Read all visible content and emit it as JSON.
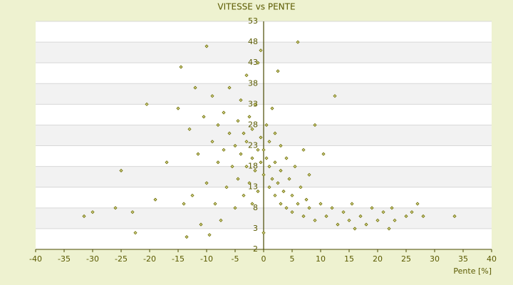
{
  "chart_data": {
    "type": "scatter",
    "title": "VITESSE vs PENTE",
    "x_label": "Pente [%]",
    "xlim": [
      -40,
      40
    ],
    "xticks": [
      -40,
      -35,
      -30,
      -25,
      -20,
      -15,
      -10,
      -5,
      0,
      5,
      10,
      15,
      20,
      25,
      30,
      35,
      40
    ],
    "ylim": [
      -2,
      53
    ],
    "yticks": [
      -2,
      3,
      8,
      13,
      18,
      23,
      28,
      33,
      38,
      43,
      48,
      53
    ],
    "grid": true,
    "color": "#6b6b00",
    "x": [
      -31.5,
      -30,
      -26,
      -25,
      -23,
      -22.5,
      -20.5,
      -19,
      -17,
      -15,
      -14.5,
      -14,
      -13.5,
      -13,
      -12.5,
      -12,
      -11.5,
      -11,
      -10.5,
      -10,
      -10,
      -9.5,
      -9,
      -9,
      -8.5,
      -8,
      -8,
      -7.5,
      -7,
      -7,
      -6.5,
      -6,
      -6,
      -5.5,
      -5,
      -5,
      -4.5,
      -4.5,
      -4,
      -4,
      -3.5,
      -3.5,
      -3,
      -3,
      -3,
      -2.5,
      -2.5,
      -2,
      -2,
      -2,
      -1.5,
      -1.5,
      -1,
      -1,
      -1,
      -0.5,
      -0.5,
      -0.5,
      0,
      0,
      0,
      0.5,
      0.5,
      1,
      1,
      1,
      1.5,
      1.5,
      2,
      2,
      2,
      2.5,
      2.5,
      3,
      3,
      3,
      3.5,
      4,
      4,
      4.5,
      5,
      5,
      5.5,
      6,
      6,
      6.5,
      7,
      7,
      7.5,
      8,
      8,
      9,
      9,
      10,
      10.5,
      11,
      12,
      12.5,
      13,
      14,
      15,
      15.5,
      16,
      17,
      18,
      19,
      20,
      21,
      22,
      22.5,
      23,
      25,
      26,
      27,
      28,
      33.5
    ],
    "values": [
      6,
      7,
      8,
      17,
      7,
      2,
      33,
      10,
      19,
      32,
      42,
      9,
      1,
      27,
      11,
      37,
      21,
      4,
      30,
      47,
      14,
      1.5,
      24,
      35,
      9,
      19,
      28,
      5,
      22,
      31,
      13,
      26,
      37,
      18,
      8,
      23,
      29,
      15,
      21,
      34,
      11,
      26,
      18,
      24,
      40,
      14,
      30,
      20,
      27,
      9,
      17,
      33,
      22,
      12,
      43,
      25,
      19,
      46,
      16,
      22,
      2,
      20,
      28,
      13,
      18,
      24,
      15,
      32,
      11,
      19,
      26,
      14,
      41,
      9,
      17,
      23,
      12,
      8,
      20,
      15,
      7,
      11,
      18,
      9,
      48,
      13,
      6,
      22,
      10,
      8,
      16,
      5,
      28,
      9,
      21,
      6,
      8,
      35,
      4,
      7,
      5,
      9,
      3,
      6,
      4,
      8,
      5,
      7,
      3,
      8,
      5,
      6,
      7,
      9,
      6,
      6
    ]
  }
}
